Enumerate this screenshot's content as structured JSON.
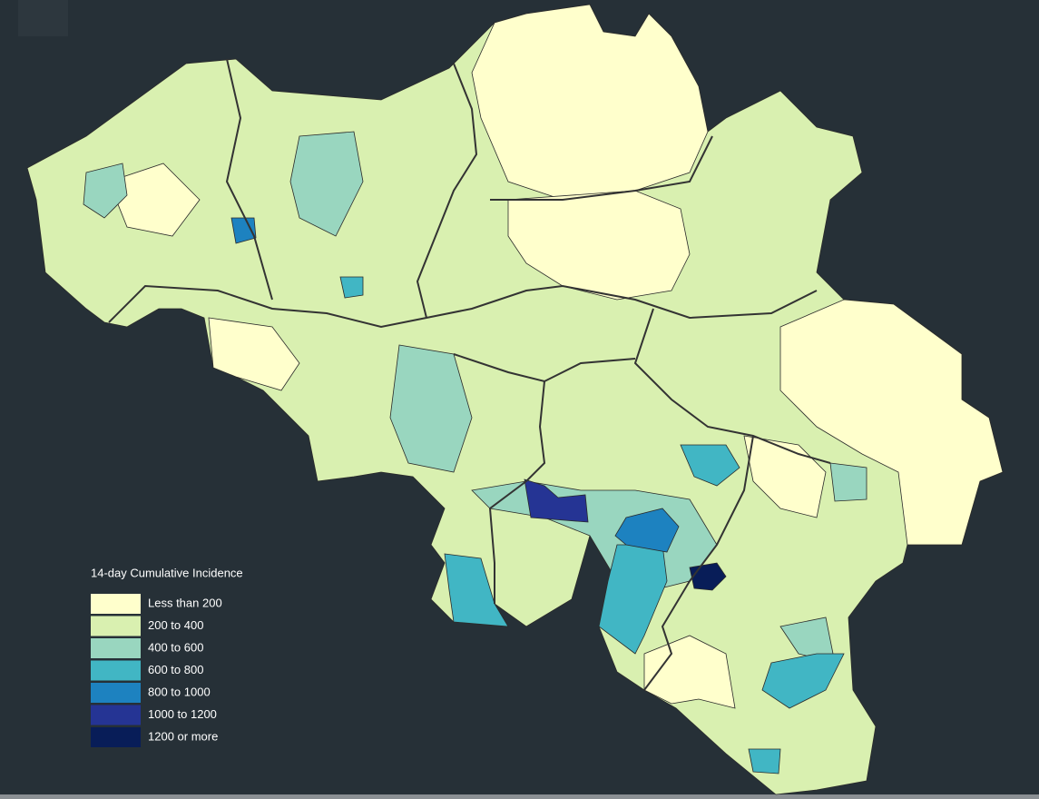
{
  "legend": {
    "title": "14-day Cumulative Incidence",
    "items": [
      {
        "label": "Less than 200",
        "color": "#ffffcc"
      },
      {
        "label": "200 to 400",
        "color": "#d9f0b0"
      },
      {
        "label": "400 to 600",
        "color": "#99d6bf"
      },
      {
        "label": "600 to 800",
        "color": "#41b6c4"
      },
      {
        "label": "800 to 1000",
        "color": "#1d82c0"
      },
      {
        "label": "1000 to 1200",
        "color": "#253494"
      },
      {
        "label": "1200 or more",
        "color": "#081d58"
      }
    ]
  }
}
